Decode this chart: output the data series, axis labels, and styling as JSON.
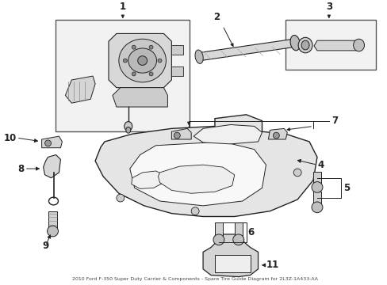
{
  "title": "2010 Ford F-350 Super Duty Carrier & Components - Spare Tire Guide Diagram for 2L3Z-1A433-AA",
  "bg_color": "#ffffff",
  "fig_width": 4.89,
  "fig_height": 3.6,
  "dpi": 100,
  "lc": "#222222",
  "fc_light": "#f0f0f0",
  "fc_part": "#e8e8e8",
  "fc_mid": "#d0d0d0",
  "fc_dark": "#aaaaaa",
  "label_fontsize": 9,
  "title_fontsize": 4.5,
  "lw_main": 0.8,
  "lw_thick": 1.2
}
